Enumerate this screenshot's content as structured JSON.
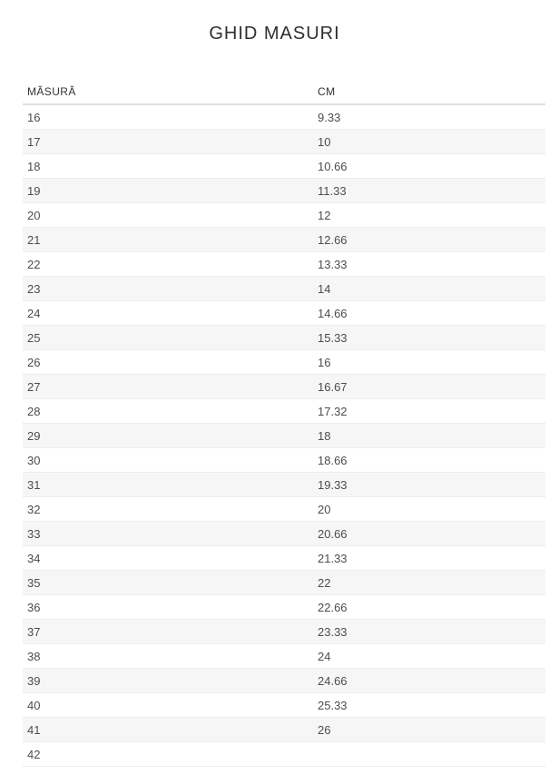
{
  "page": {
    "title": "GHID MASURI"
  },
  "size_table": {
    "headers": {
      "size": "MĂSURĂ",
      "cm": "CM"
    },
    "rows": [
      {
        "size": "16",
        "cm": "9.33"
      },
      {
        "size": "17",
        "cm": "10"
      },
      {
        "size": "18",
        "cm": "10.66"
      },
      {
        "size": "19",
        "cm": "11.33"
      },
      {
        "size": "20",
        "cm": "12"
      },
      {
        "size": "21",
        "cm": "12.66"
      },
      {
        "size": "22",
        "cm": "13.33"
      },
      {
        "size": "23",
        "cm": "14"
      },
      {
        "size": "24",
        "cm": "14.66"
      },
      {
        "size": "25",
        "cm": "15.33"
      },
      {
        "size": "26",
        "cm": "16"
      },
      {
        "size": "27",
        "cm": "16.67"
      },
      {
        "size": "28",
        "cm": "17.32"
      },
      {
        "size": "29",
        "cm": "18"
      },
      {
        "size": "30",
        "cm": "18.66"
      },
      {
        "size": "31",
        "cm": "19.33"
      },
      {
        "size": "32",
        "cm": "20"
      },
      {
        "size": "33",
        "cm": "20.66"
      },
      {
        "size": "34",
        "cm": "21.33"
      },
      {
        "size": "35",
        "cm": "22"
      },
      {
        "size": "36",
        "cm": "22.66"
      },
      {
        "size": "37",
        "cm": "23.33"
      },
      {
        "size": "38",
        "cm": "24"
      },
      {
        "size": "39",
        "cm": "24.66"
      },
      {
        "size": "40",
        "cm": "25.33"
      },
      {
        "size": "41",
        "cm": "26"
      },
      {
        "size": "42",
        "cm": ""
      }
    ]
  },
  "colors": {
    "stripe_row_bg": "#f6f6f6",
    "row_border": "#ededed",
    "header_border": "#dedede",
    "heading_text": "#2f2f2f",
    "header_text": "#333333",
    "cell_text": "#4d4d4d"
  }
}
